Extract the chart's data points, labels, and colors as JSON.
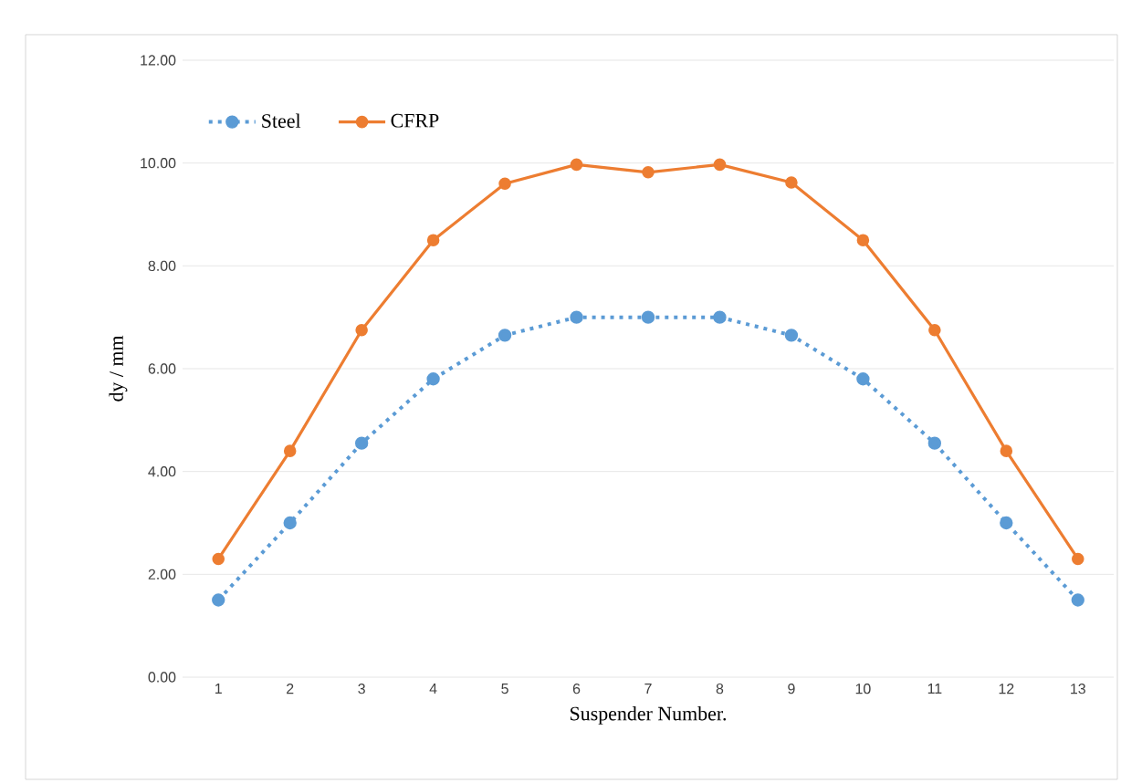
{
  "chart_data": {
    "type": "line",
    "xlabel": "Suspender Number.",
    "ylabel": "dy / mm",
    "categories": [
      "1",
      "2",
      "3",
      "4",
      "5",
      "6",
      "7",
      "8",
      "9",
      "10",
      "11",
      "12",
      "13"
    ],
    "series": [
      {
        "name": "Steel",
        "color": "#5b9bd5",
        "line_style": "dotted",
        "marker": "circle",
        "values": [
          1.5,
          3.0,
          4.55,
          5.8,
          6.65,
          7.0,
          7.0,
          7.0,
          6.65,
          5.8,
          4.55,
          3.0,
          1.5
        ]
      },
      {
        "name": "CFRP",
        "color": "#ed7d31",
        "line_style": "solid",
        "marker": "circle",
        "values": [
          2.3,
          4.4,
          6.75,
          8.5,
          9.6,
          9.97,
          9.82,
          9.97,
          9.62,
          8.5,
          6.75,
          4.4,
          2.3
        ]
      }
    ],
    "ylim": [
      0,
      12
    ],
    "yticks": [
      {
        "value": 0,
        "label": "0.00"
      },
      {
        "value": 2,
        "label": "2.00"
      },
      {
        "value": 4,
        "label": "4.00"
      },
      {
        "value": 6,
        "label": "6.00"
      },
      {
        "value": 8,
        "label": "8.00"
      },
      {
        "value": 10,
        "label": "10.00"
      },
      {
        "value": 12,
        "label": "12.00"
      }
    ],
    "grid": "y",
    "legend": "top left"
  }
}
